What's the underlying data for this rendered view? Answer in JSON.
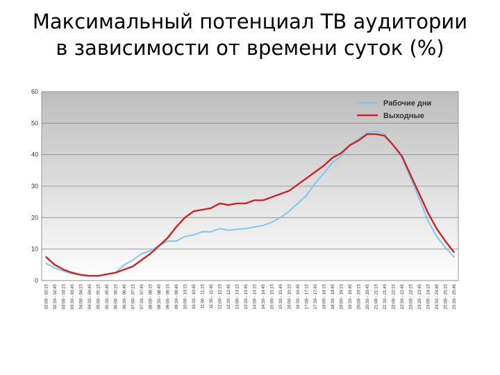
{
  "slide": {
    "title_line1": "Максимальный потенциал ТВ аудитории",
    "title_line2": "в зависимости от времени суток (%)"
  },
  "chart_data": {
    "type": "line",
    "title": "Максимальный потенциал ТВ аудитории в зависимости от времени суток (%)",
    "xlabel": "",
    "ylabel": "",
    "ylim": [
      0,
      60
    ],
    "yticks": [
      0,
      10,
      20,
      30,
      40,
      50,
      60
    ],
    "grid": true,
    "legend_position": "top-right",
    "categories": [
      "02:00 - 02:15",
      "02:30 - 02:45",
      "03:00 - 03:15",
      "03:30 - 03:45",
      "04:00 - 04:15",
      "04:30 - 04:45",
      "05:00 - 05:15",
      "05:30 - 05:45",
      "06:00 - 06:15",
      "06:30 - 06:45",
      "07:00 - 07:15",
      "07:30 - 07:45",
      "08:00 - 08:15",
      "08:30 - 08:45",
      "09:00 - 09:15",
      "09:30 - 09:45",
      "10:00 - 10:15",
      "10:30 - 10:45",
      "11:00 - 11:15",
      "11:30 - 11:45",
      "12:00 - 12:15",
      "12:30 - 12:45",
      "13:00 - 13:15",
      "13:30 - 13:45",
      "14:00 - 14:15",
      "14:30 - 14:45",
      "15:00 - 15:15",
      "15:30 - 15:45",
      "16:00 - 16:15",
      "16:30 - 16:45",
      "17:00 - 17:15",
      "17:30 - 17:45",
      "18:00 - 18:15",
      "18:30 - 18:45",
      "19:00 - 19:15",
      "19:30 - 19:45",
      "20:00 - 20:15",
      "20:30 - 20:45",
      "21:00 - 21:15",
      "21:30 - 21:45",
      "22:00 - 22:15",
      "22:30 - 22:45",
      "23:00 - 23:15",
      "23:30 - 23:45",
      "24:00 - 24:15",
      "24:30 - 24:45",
      "25:00 - 25:15",
      "25:30 - 25:45"
    ],
    "series": [
      {
        "name": "Рабочие дни",
        "color": "#7ec8ee",
        "values": [
          5.5,
          4.0,
          3.0,
          2.2,
          1.8,
          1.5,
          1.5,
          2.0,
          2.5,
          5.0,
          6.5,
          8.5,
          9.5,
          11.0,
          12.5,
          12.5,
          14.0,
          14.5,
          15.5,
          15.5,
          16.5,
          16.0,
          16.3,
          16.5,
          17.0,
          17.5,
          18.5,
          20.0,
          22.0,
          24.5,
          27.0,
          31.0,
          34.0,
          37.5,
          39.5,
          43.0,
          45.0,
          47.0,
          47.5,
          46.5,
          43.0,
          39.0,
          32.5,
          26.0,
          19.0,
          14.0,
          10.5,
          7.5
        ]
      },
      {
        "name": "Выходные",
        "color": "#cc2222",
        "values": [
          7.5,
          5.0,
          3.5,
          2.5,
          1.8,
          1.5,
          1.5,
          2.0,
          2.5,
          3.5,
          4.5,
          6.5,
          8.5,
          11.0,
          13.5,
          17.0,
          20.0,
          22.0,
          22.5,
          23.0,
          24.5,
          24.0,
          24.5,
          24.5,
          25.5,
          25.5,
          26.5,
          27.5,
          28.5,
          30.5,
          32.5,
          34.5,
          36.5,
          39.0,
          40.5,
          43.0,
          44.5,
          46.5,
          46.5,
          46.0,
          43.0,
          39.5,
          33.5,
          27.5,
          21.5,
          16.5,
          12.5,
          9.0
        ]
      }
    ]
  }
}
